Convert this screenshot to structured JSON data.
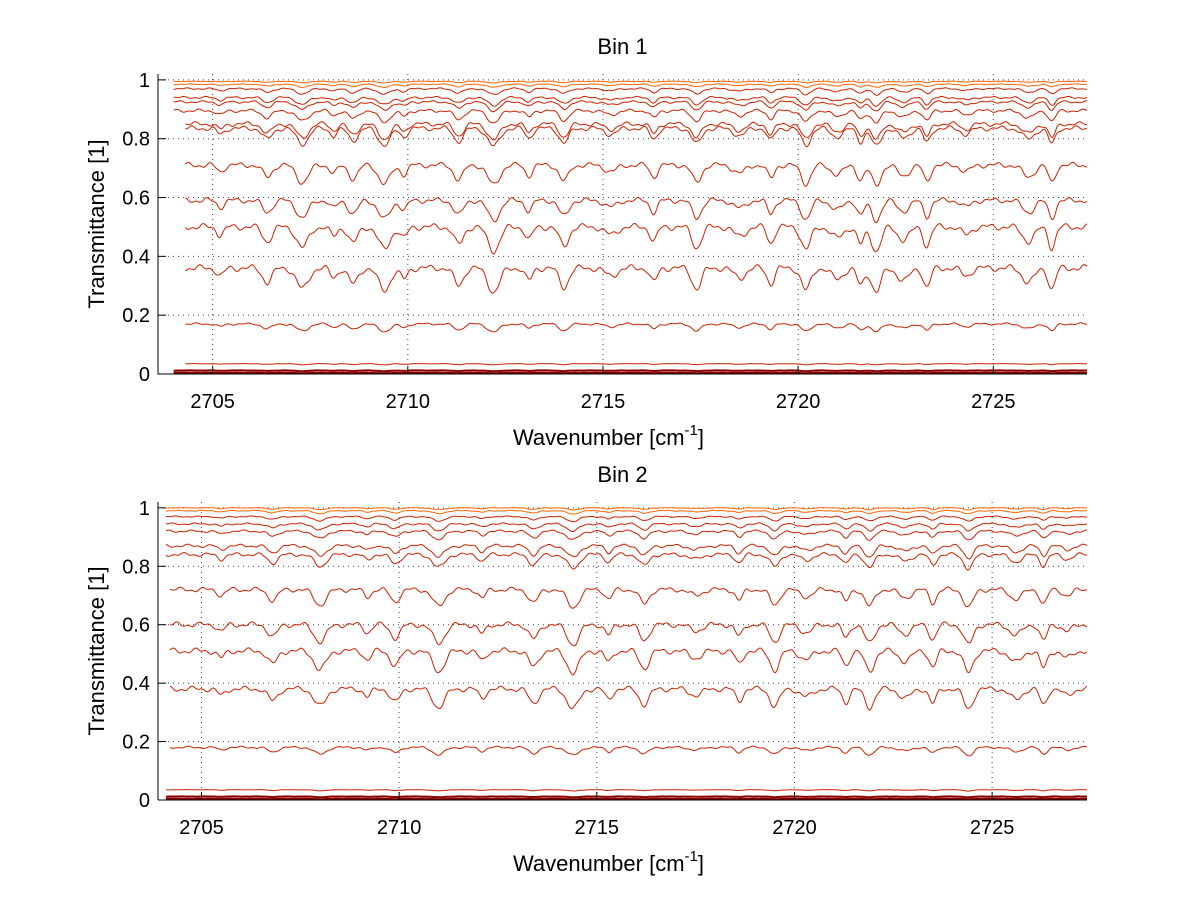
{
  "chart_data": [
    {
      "type": "line",
      "title": "Bin 1",
      "xlabel": "Wavenumber [cm",
      "xlabel_sup": "-1",
      "xlabel_end": "]",
      "ylabel": "Transmittance [1]",
      "xlim": [
        2703.6,
        2727.4
      ],
      "ylim": [
        0,
        1.02
      ],
      "x_ticks": [
        2705,
        2710,
        2715,
        2720,
        2725
      ],
      "x_tick_labels": [
        "2705",
        "2710",
        "2715",
        "2720",
        "2725"
      ],
      "y_ticks": [
        0,
        0.2,
        0.4,
        0.6,
        0.8,
        1
      ],
      "y_tick_labels": [
        "0",
        "0.2",
        "0.4",
        "0.6",
        "0.8",
        "1"
      ],
      "grid": true,
      "series_color": "#cc2200",
      "top_series_color": "#ff6600",
      "absorption_lines": [
        2705.2,
        2706.4,
        2707.3,
        2708.1,
        2708.6,
        2709.4,
        2709.9,
        2711.3,
        2712.2,
        2713.1,
        2714.0,
        2715.2,
        2716.3,
        2717.4,
        2718.5,
        2719.3,
        2720.2,
        2721.0,
        2721.6,
        2722.0,
        2722.7,
        2723.3,
        2724.3,
        2725.9,
        2726.5
      ],
      "series": [
        {
          "level": 0.995,
          "x_start": 2704.0,
          "depth": 0.004
        },
        {
          "level": 0.985,
          "x_start": 2704.0,
          "depth": 0.008
        },
        {
          "level": 0.97,
          "x_start": 2704.0,
          "depth": 0.015
        },
        {
          "level": 0.94,
          "x_start": 2704.0,
          "depth": 0.02
        },
        {
          "level": 0.925,
          "x_start": 2704.0,
          "depth": 0.022
        },
        {
          "level": 0.895,
          "x_start": 2704.0,
          "depth": 0.03
        },
        {
          "level": 0.85,
          "x_start": 2704.3,
          "depth": 0.04
        },
        {
          "level": 0.835,
          "x_start": 2704.3,
          "depth": 0.045
        },
        {
          "level": 0.71,
          "x_start": 2704.3,
          "depth": 0.05
        },
        {
          "level": 0.59,
          "x_start": 2704.3,
          "depth": 0.05
        },
        {
          "level": 0.5,
          "x_start": 2704.3,
          "depth": 0.06
        },
        {
          "level": 0.36,
          "x_start": 2704.3,
          "depth": 0.06
        },
        {
          "level": 0.17,
          "x_start": 2704.3,
          "depth": 0.02
        },
        {
          "level": 0.035,
          "x_start": 2704.3,
          "depth": 0.003
        },
        {
          "level": 0.012,
          "x_start": 2704.0,
          "depth": 0.002
        },
        {
          "level": 0.004,
          "x_start": 2704.0,
          "depth": 0.001
        }
      ]
    },
    {
      "type": "line",
      "title": "Bin 2",
      "xlabel": "Wavenumber [cm",
      "xlabel_sup": "-1",
      "xlabel_end": "]",
      "ylabel": "Transmittance [1]",
      "xlim": [
        2703.9,
        2727.4
      ],
      "ylim": [
        0,
        1.02
      ],
      "x_ticks": [
        2705,
        2710,
        2715,
        2720,
        2725
      ],
      "x_tick_labels": [
        "2705",
        "2710",
        "2715",
        "2720",
        "2725"
      ],
      "y_ticks": [
        0,
        0.2,
        0.4,
        0.6,
        0.8,
        1
      ],
      "y_tick_labels": [
        "0",
        "0.2",
        "0.4",
        "0.6",
        "0.8",
        "1"
      ],
      "grid": true,
      "series_color": "#cc2200",
      "top_series_color": "#ff6600",
      "absorption_lines": [
        2705.5,
        2706.8,
        2708.0,
        2709.2,
        2709.9,
        2711.0,
        2712.1,
        2713.4,
        2714.4,
        2715.3,
        2716.2,
        2717.5,
        2718.6,
        2719.5,
        2720.3,
        2721.3,
        2721.9,
        2722.8,
        2723.5,
        2724.4,
        2725.6,
        2726.3,
        2726.9
      ],
      "series": [
        {
          "level": 1.0,
          "x_start": 2704.1,
          "depth": 0.005
        },
        {
          "level": 0.99,
          "x_start": 2704.1,
          "depth": 0.008
        },
        {
          "level": 0.97,
          "x_start": 2704.1,
          "depth": 0.012
        },
        {
          "level": 0.945,
          "x_start": 2704.1,
          "depth": 0.018
        },
        {
          "level": 0.92,
          "x_start": 2704.1,
          "depth": 0.022
        },
        {
          "level": 0.87,
          "x_start": 2704.1,
          "depth": 0.03
        },
        {
          "level": 0.84,
          "x_start": 2704.1,
          "depth": 0.035
        },
        {
          "level": 0.72,
          "x_start": 2704.2,
          "depth": 0.045
        },
        {
          "level": 0.6,
          "x_start": 2704.2,
          "depth": 0.05
        },
        {
          "level": 0.51,
          "x_start": 2704.2,
          "depth": 0.055
        },
        {
          "level": 0.38,
          "x_start": 2704.2,
          "depth": 0.05
        },
        {
          "level": 0.18,
          "x_start": 2704.2,
          "depth": 0.02
        },
        {
          "level": 0.035,
          "x_start": 2704.1,
          "depth": 0.003
        },
        {
          "level": 0.012,
          "x_start": 2704.1,
          "depth": 0.002
        },
        {
          "level": 0.004,
          "x_start": 2704.1,
          "depth": 0.001
        }
      ]
    }
  ]
}
